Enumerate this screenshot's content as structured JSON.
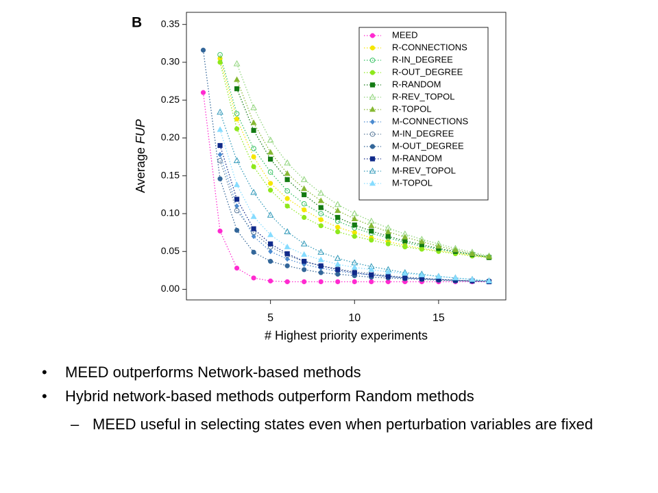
{
  "chart_data": {
    "type": "line",
    "panel": "B",
    "ylabel": {
      "text": "Average",
      "italic": "FUP"
    },
    "xlabel": "# Highest priority experiments",
    "x": [
      1,
      2,
      3,
      4,
      5,
      6,
      7,
      8,
      9,
      10,
      11,
      12,
      13,
      14,
      15,
      16,
      17,
      18
    ],
    "xlim": [
      0,
      19
    ],
    "xticks": [
      5,
      10,
      15
    ],
    "ylim": [
      -0.014,
      0.366
    ],
    "yticks": [
      {
        "value": 0,
        "label": "0.00"
      },
      {
        "value": 0.05,
        "label": "0.05"
      },
      {
        "value": 0.1,
        "label": "0.10"
      },
      {
        "value": 0.15,
        "label": "0.15"
      },
      {
        "value": 0.2,
        "label": "0.20"
      },
      {
        "value": 0.25,
        "label": "0.25"
      },
      {
        "value": 0.3,
        "label": "0.30"
      },
      {
        "value": 0.35,
        "label": "0.35"
      }
    ],
    "legend": "top-right",
    "series": [
      {
        "name": "MEED",
        "color": "#ff2ad0",
        "marker": "circle",
        "values": [
          0.26,
          0.077,
          0.028,
          0.015,
          0.011,
          0.01,
          0.01,
          0.01,
          0.01,
          0.01,
          0.01,
          0.01,
          0.01,
          0.01,
          0.01,
          0.01,
          0.01,
          0.01
        ]
      },
      {
        "name": "R-CONNECTIONS",
        "color": "#f5e600",
        "marker": "circle",
        "values": [
          null,
          0.305,
          0.225,
          0.175,
          0.14,
          0.12,
          0.105,
          0.092,
          0.082,
          0.075,
          0.068,
          0.063,
          0.058,
          0.054,
          0.051,
          0.048,
          0.045,
          0.042
        ]
      },
      {
        "name": "R-IN_DEGREE",
        "color": "#33c060",
        "marker": "circle-open",
        "values": [
          null,
          0.31,
          0.232,
          0.186,
          0.155,
          0.13,
          0.113,
          0.1,
          0.09,
          0.081,
          0.074,
          0.068,
          0.062,
          0.057,
          0.053,
          0.049,
          0.046,
          0.043
        ]
      },
      {
        "name": "R-OUT_DEGREE",
        "color": "#8ee81c",
        "marker": "circle",
        "values": [
          null,
          0.3,
          0.212,
          0.162,
          0.131,
          0.11,
          0.095,
          0.084,
          0.076,
          0.07,
          0.065,
          0.06,
          0.056,
          0.053,
          0.05,
          0.047,
          0.044,
          0.042
        ]
      },
      {
        "name": "R-RANDOM",
        "color": "#137a13",
        "marker": "square",
        "values": [
          null,
          null,
          0.265,
          0.21,
          0.172,
          0.145,
          0.125,
          0.108,
          0.095,
          0.085,
          0.077,
          0.07,
          0.064,
          0.059,
          0.054,
          0.05,
          0.046,
          0.042
        ]
      },
      {
        "name": "R-REV_TOPOL",
        "color": "#8fd47a",
        "marker": "triangle-open",
        "values": [
          null,
          null,
          0.298,
          0.24,
          0.197,
          0.167,
          0.145,
          0.127,
          0.112,
          0.1,
          0.09,
          0.081,
          0.073,
          0.066,
          0.06,
          0.054,
          0.049,
          0.044
        ]
      },
      {
        "name": "R-TOPOL",
        "color": "#86b832",
        "marker": "triangle",
        "values": [
          null,
          null,
          0.277,
          0.22,
          0.181,
          0.153,
          0.133,
          0.117,
          0.104,
          0.093,
          0.084,
          0.076,
          0.069,
          0.063,
          0.057,
          0.052,
          0.047,
          0.043
        ]
      },
      {
        "name": "M-CONNECTIONS",
        "color": "#4a8ad0",
        "marker": "diamond",
        "values": [
          null,
          0.178,
          0.11,
          0.07,
          0.05,
          0.04,
          0.033,
          0.028,
          0.024,
          0.021,
          0.019,
          0.017,
          0.015,
          0.014,
          0.013,
          0.012,
          0.011,
          0.011
        ]
      },
      {
        "name": "M-IN_DEGREE",
        "color": "#5a7a9a",
        "marker": "circle-open",
        "values": [
          null,
          0.17,
          0.104,
          0.075,
          0.056,
          0.045,
          0.037,
          0.031,
          0.027,
          0.023,
          0.021,
          0.018,
          0.016,
          0.015,
          0.013,
          0.012,
          0.011,
          0.011
        ]
      },
      {
        "name": "M-OUT_DEGREE",
        "color": "#336699",
        "marker": "circle",
        "values": [
          0.316,
          0.146,
          0.078,
          0.049,
          0.037,
          0.031,
          0.026,
          0.022,
          0.02,
          0.018,
          0.016,
          0.015,
          0.014,
          0.013,
          0.012,
          0.011,
          0.011,
          0.011
        ]
      },
      {
        "name": "M-RANDOM",
        "color": "#102a8a",
        "marker": "square",
        "values": [
          null,
          0.19,
          0.119,
          0.08,
          0.06,
          0.047,
          0.037,
          0.031,
          0.026,
          0.022,
          0.019,
          0.017,
          0.015,
          0.014,
          0.013,
          0.012,
          0.011,
          0.01
        ]
      },
      {
        "name": "M-REV_TOPOL",
        "color": "#2f98b8",
        "marker": "triangle-open",
        "values": [
          null,
          0.234,
          0.17,
          0.128,
          0.098,
          0.076,
          0.06,
          0.049,
          0.041,
          0.035,
          0.03,
          0.026,
          0.022,
          0.02,
          0.017,
          0.015,
          0.013,
          0.011
        ]
      },
      {
        "name": "M-TOPOL",
        "color": "#86dcff",
        "marker": "triangle",
        "values": [
          null,
          0.211,
          0.138,
          0.096,
          0.072,
          0.056,
          0.046,
          0.039,
          0.033,
          0.029,
          0.026,
          0.023,
          0.021,
          0.019,
          0.017,
          0.015,
          0.013,
          0.011
        ]
      }
    ]
  },
  "bullets": [
    {
      "level": 1,
      "text": "MEED outperforms Network-based methods"
    },
    {
      "level": 1,
      "text": "Hybrid network-based methods outperform Random methods"
    },
    {
      "level": 2,
      "text": "MEED useful in selecting states even when perturbation variables are fixed"
    }
  ]
}
